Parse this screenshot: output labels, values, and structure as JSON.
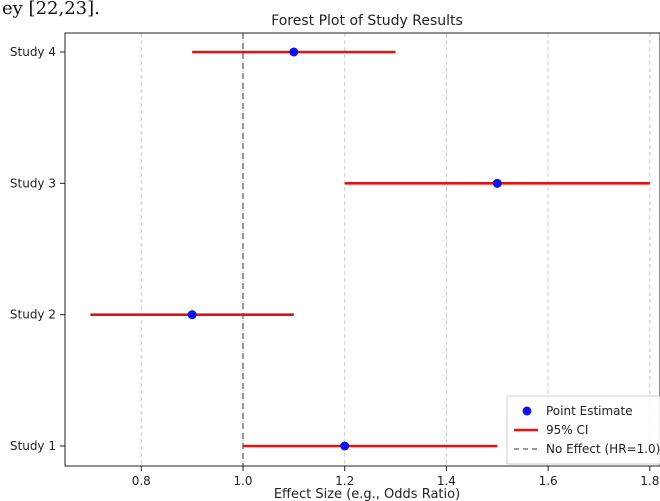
{
  "page_fragment": "ey [22,23].",
  "chart_data": {
    "type": "scatter",
    "title": "Forest Plot of Study Results",
    "xlabel": "Effect Size (e.g., Odds Ratio)",
    "ylabel": "",
    "xlim": [
      0.65,
      1.82
    ],
    "xticks": [
      "0.8",
      "1.0",
      "1.2",
      "1.4",
      "1.6",
      "1.8"
    ],
    "xtick_values": [
      0.8,
      1.0,
      1.2,
      1.4,
      1.6,
      1.8
    ],
    "grid": "vertical dashed",
    "studies": [
      {
        "label": "Study 1",
        "estimate": 1.2,
        "ci_low": 1.0,
        "ci_high": 1.5
      },
      {
        "label": "Study 2",
        "estimate": 0.9,
        "ci_low": 0.7,
        "ci_high": 1.1
      },
      {
        "label": "Study 3",
        "estimate": 1.5,
        "ci_low": 1.2,
        "ci_high": 1.8
      },
      {
        "label": "Study 4",
        "estimate": 1.1,
        "ci_low": 0.9,
        "ci_high": 1.3
      }
    ],
    "reference_line": 1.0,
    "legend": {
      "placement": "bottom-right",
      "entries": [
        "Point Estimate",
        "95% CI",
        "No Effect (HR=1.0)"
      ]
    },
    "colors": {
      "point": "#1010e8",
      "ci": "#e81010",
      "reference": "#777777",
      "grid": "#cccccc"
    }
  }
}
